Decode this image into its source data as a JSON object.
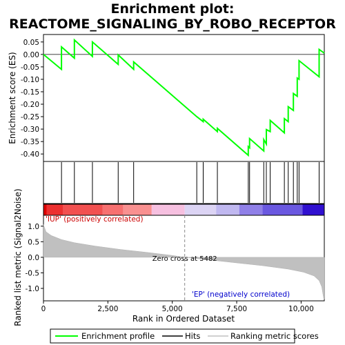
{
  "chart_data": {
    "type": "line",
    "title_line1": "Enrichment plot:",
    "title_line2": "REACTOME_SIGNALING_BY_ROBO_RECEPTOR",
    "top_panel": {
      "ylabel": "Enrichment score (ES)",
      "ylim": [
        -0.43,
        0.08
      ],
      "yticks": [
        0.05,
        0.0,
        -0.05,
        -0.1,
        -0.15,
        -0.2,
        -0.25,
        -0.3,
        -0.35,
        -0.4
      ],
      "ytick_labels": [
        "0.05",
        "0.00",
        "-0.05",
        "-0.10",
        "-0.15",
        "-0.20",
        "-0.25",
        "-0.30",
        "-0.35",
        "-0.40"
      ],
      "line_color": "#00ff00",
      "es_points": [
        [
          0,
          0.0
        ],
        [
          700,
          -0.06
        ],
        [
          700,
          0.03
        ],
        [
          1200,
          -0.015
        ],
        [
          1200,
          0.058
        ],
        [
          1900,
          -0.008
        ],
        [
          1900,
          0.05
        ],
        [
          2900,
          -0.04
        ],
        [
          2900,
          -0.002
        ],
        [
          3500,
          -0.06
        ],
        [
          3500,
          -0.03
        ],
        [
          5950,
          -0.25
        ],
        [
          6200,
          -0.27
        ],
        [
          6200,
          -0.26
        ],
        [
          6750,
          -0.31
        ],
        [
          6750,
          -0.297
        ],
        [
          7950,
          -0.405
        ],
        [
          7950,
          -0.37
        ],
        [
          8000,
          -0.375
        ],
        [
          8000,
          -0.338
        ],
        [
          8550,
          -0.388
        ],
        [
          8550,
          -0.342
        ],
        [
          8650,
          -0.36
        ],
        [
          8650,
          -0.302
        ],
        [
          8800,
          -0.31
        ],
        [
          8800,
          -0.265
        ],
        [
          9350,
          -0.315
        ],
        [
          9350,
          -0.258
        ],
        [
          9500,
          -0.27
        ],
        [
          9500,
          -0.21
        ],
        [
          9700,
          -0.225
        ],
        [
          9700,
          -0.157
        ],
        [
          9850,
          -0.168
        ],
        [
          9850,
          -0.095
        ],
        [
          9920,
          -0.1
        ],
        [
          9920,
          -0.025
        ],
        [
          10700,
          -0.09
        ],
        [
          10700,
          0.02
        ],
        [
          10900,
          0.005
        ]
      ]
    },
    "hits_panel": {
      "hit_positions": [
        700,
        1200,
        1900,
        2900,
        3500,
        5950,
        6200,
        6750,
        7950,
        8000,
        8550,
        8650,
        8800,
        9350,
        9500,
        9700,
        9850,
        9920,
        10700
      ],
      "hit_color": "#000000"
    },
    "heat_bar": {
      "segments": [
        {
          "from": 0,
          "to": 120,
          "color": "#dd0000"
        },
        {
          "from": 120,
          "to": 750,
          "color": "#ec3030"
        },
        {
          "from": 750,
          "to": 2300,
          "color": "#f25050"
        },
        {
          "from": 2300,
          "to": 3100,
          "color": "#f77070"
        },
        {
          "from": 3100,
          "to": 4200,
          "color": "#f99090"
        },
        {
          "from": 4200,
          "to": 5482,
          "color": "#f6c0e0"
        },
        {
          "from": 5482,
          "to": 6700,
          "color": "#dcd4f4"
        },
        {
          "from": 6700,
          "to": 7600,
          "color": "#c0b8f0"
        },
        {
          "from": 7600,
          "to": 8500,
          "color": "#9080e8"
        },
        {
          "from": 8500,
          "to": 10050,
          "color": "#6a58e0"
        },
        {
          "from": 10050,
          "to": 10900,
          "color": "#3010d0"
        }
      ]
    },
    "bottom_panel": {
      "ylabel": "Ranked list metric (Signal2Noise)",
      "xlabel": "Rank in Ordered Dataset",
      "ylim": [
        -1.4,
        1.35
      ],
      "yticks": [
        1.0,
        0.5,
        0.0,
        -0.5,
        -1.0
      ],
      "ytick_labels": [
        "1.0",
        "0.5",
        "0.0",
        "-0.5",
        "-1.0"
      ],
      "xlim": [
        0,
        10900
      ],
      "xticks": [
        0,
        2500,
        5000,
        7500,
        10000
      ],
      "xtick_labels": [
        "0",
        "2,500",
        "5,000",
        "7,500",
        "10,000"
      ],
      "fill_color": "#c0c0c0",
      "metric_points": [
        [
          0,
          1.05
        ],
        [
          100,
          0.82
        ],
        [
          300,
          0.7
        ],
        [
          700,
          0.57
        ],
        [
          1200,
          0.47
        ],
        [
          2000,
          0.36
        ],
        [
          3000,
          0.25
        ],
        [
          4000,
          0.16
        ],
        [
          5000,
          0.06
        ],
        [
          5482,
          0.0
        ],
        [
          6500,
          -0.09
        ],
        [
          7500,
          -0.18
        ],
        [
          8500,
          -0.27
        ],
        [
          9500,
          -0.38
        ],
        [
          10100,
          -0.48
        ],
        [
          10500,
          -0.6
        ],
        [
          10700,
          -0.75
        ],
        [
          10800,
          -0.95
        ],
        [
          10880,
          -1.35
        ],
        [
          10900,
          -1.35
        ]
      ],
      "zero_cross_label": "Zero cross at 5482",
      "zero_cross_rank": 5482,
      "pos_label": "'IUP' (positively correlated)",
      "neg_label": "'EP' (negatively correlated)",
      "pos_label_color": "#cc0000",
      "neg_label_color": "#0000cc"
    },
    "legend": [
      {
        "label": "Enrichment profile",
        "color": "#00ff00"
      },
      {
        "label": "Hits",
        "color": "#000000"
      },
      {
        "label": "Ranking metric scores",
        "color": "#c0c0c0"
      }
    ]
  }
}
